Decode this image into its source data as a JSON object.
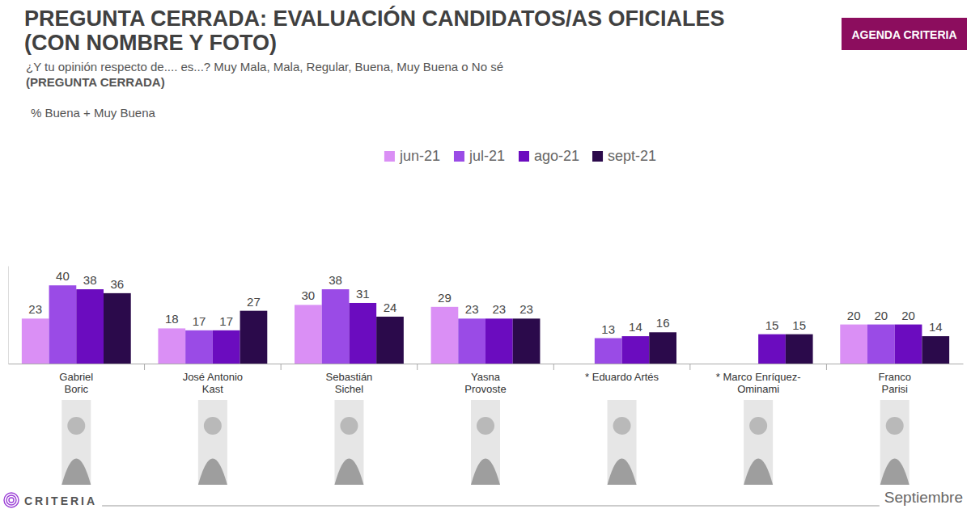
{
  "chart_data": {
    "type": "bar",
    "title": "PREGUNTA CERRADA: EVALUACIÓN CANDIDATOS/AS OFICIALES (CON NOMBRE Y FOTO)",
    "subtitle": "¿Y tu opinión respecto de.... es...? Muy Mala, Mala, Regular, Buena, Muy Buena o No sé",
    "ylabel": "% Buena + Muy Buena",
    "annotations": [
      "(PREGUNTA CERRADA)",
      "AGENDA CRITERIA",
      "CRITERIA",
      "Septiembre"
    ],
    "categories": [
      "Gabriel Boric",
      "José Antonio Kast",
      "Sebastián Sichel",
      "Yasna Provoste",
      "* Eduardo Artés",
      "* Marco Enríquez-Ominami",
      "Franco Parisi"
    ],
    "series": [
      {
        "name": "jun-21",
        "color": "#da8ff5",
        "values": [
          23,
          18,
          30,
          29,
          null,
          null,
          20
        ]
      },
      {
        "name": "jul-21",
        "color": "#9a4be6",
        "values": [
          40,
          17,
          38,
          23,
          13,
          null,
          20
        ]
      },
      {
        "name": "ago-21",
        "color": "#6b0cbf",
        "values": [
          38,
          17,
          31,
          23,
          14,
          15,
          20
        ]
      },
      {
        "name": "sept-21",
        "color": "#2b0a4b",
        "values": [
          36,
          27,
          24,
          23,
          16,
          15,
          14
        ]
      }
    ],
    "ylim": [
      0,
      50
    ],
    "yticks": [],
    "tick_labels": false,
    "data_labels": true,
    "legend": "top",
    "grid": false
  }
}
